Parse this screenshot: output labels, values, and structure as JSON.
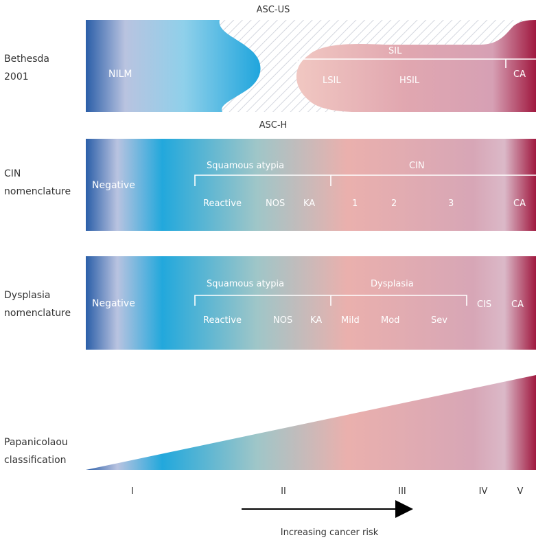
{
  "bethesda": {
    "row_label_1": "Bethesda",
    "row_label_2": "2001",
    "asc_us": "ASC-US",
    "asc_h": "ASC-H",
    "nilm": "NILM",
    "sil": "SIL",
    "lsil": "LSIL",
    "hsil": "HSIL",
    "ca": "CA"
  },
  "cin": {
    "row_label_1": "CIN",
    "row_label_2": "nomenclature",
    "negative": "Negative",
    "squamous_atypia": "Squamous atypia",
    "cin": "CIN",
    "reactive": "Reactive",
    "nos": "NOS",
    "ka": "KA",
    "grade_1": "1",
    "grade_2": "2",
    "grade_3": "3",
    "ca": "CA"
  },
  "dysplasia": {
    "row_label_1": "Dysplasia",
    "row_label_2": "nomenclature",
    "negative": "Negative",
    "squamous_atypia": "Squamous atypia",
    "dysplasia": "Dysplasia",
    "reactive": "Reactive",
    "nos": "NOS",
    "ka": "KA",
    "mild": "Mild",
    "mod": "Mod",
    "sev": "Sev",
    "cis": "CIS",
    "ca": "CA"
  },
  "papanicolaou": {
    "row_label_1": "Papanicolaou",
    "row_label_2": "classification",
    "classes": [
      "I",
      "II",
      "III",
      "IV",
      "V"
    ]
  },
  "axis": {
    "caption": "Increasing cancer risk"
  },
  "colors": {
    "dark_blue": "#2a5ea8",
    "light_lavender": "#b9c3e0",
    "cyan": "#22a8dc",
    "teal_gray": "#9fc6c8",
    "pink": "#eab0ad",
    "mauve": "#d7a6b6",
    "crimson": "#a0183f"
  }
}
